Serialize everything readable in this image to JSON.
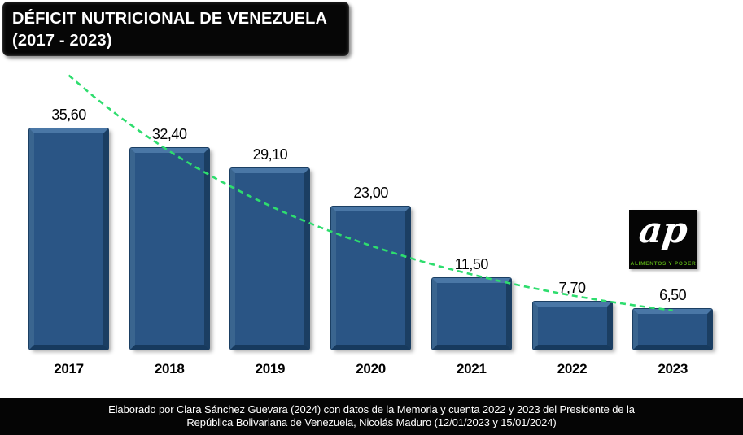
{
  "title": {
    "line1": "DÉFICIT NUTRICIONAL DE VENEZUELA",
    "line2": "(2017 - 2023)"
  },
  "chart_data": {
    "type": "bar",
    "title": "DÉFICIT NUTRICIONAL DE VENEZUELA (2017 - 2023)",
    "categories": [
      "2017",
      "2018",
      "2019",
      "2020",
      "2021",
      "2022",
      "2023"
    ],
    "values": [
      35.6,
      32.4,
      29.1,
      23.0,
      11.5,
      7.7,
      6.5
    ],
    "labels": [
      "35,60",
      "32,40",
      "29,10",
      "23,00",
      "11,50",
      "7,70",
      "6,50"
    ],
    "xlabel": "",
    "ylabel": "",
    "ylim": [
      0,
      44
    ],
    "grid": false,
    "legend": false,
    "bar_color": "#2a5585",
    "trendline": {
      "type": "exponential",
      "style": "dashed",
      "color": "#2edd6e",
      "values": [
        44.1,
        31.9,
        23.1,
        16.7,
        12.1,
        8.7,
        6.3
      ]
    }
  },
  "logo": {
    "monogram": "ap",
    "caption": "ALIMENTOS Y PODER",
    "bg_color": "#050505",
    "caption_color": "#55a514"
  },
  "footer": {
    "line1": "Elaborado por Clara Sánchez Guevara (2024) con datos de la Memoria y cuenta 2022 y 2023 del Presidente de la",
    "line2": "República Bolivariana de Venezuela, Nicolás Maduro (12/01/2023 y 15/01/2024)"
  }
}
